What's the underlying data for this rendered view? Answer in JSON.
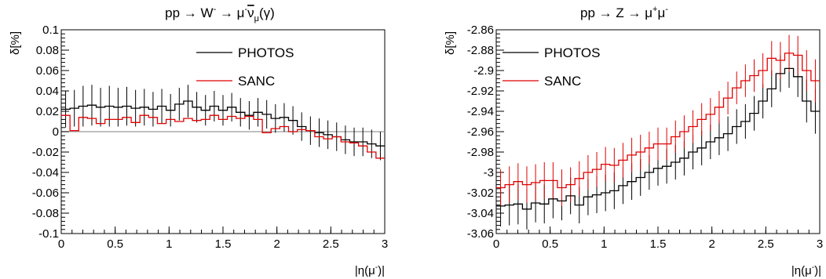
{
  "chart_data": [
    {
      "type": "step",
      "title": "pp → W⁻ → μ⁻ν̄μ(γ)",
      "title_parts": {
        "main": "pp → W",
        "sup1": "-",
        "mid": " → μ",
        "sup2": "-",
        "nu": "ν",
        "sub": "μ",
        "end": "(γ)"
      },
      "ylabel": "δ[%]",
      "xlabel": "|η(μ⁻)|",
      "xlabel_parts": {
        "main": "|η(μ",
        "sup": "-",
        "end": ")|"
      },
      "xlim": [
        0,
        3
      ],
      "ylim": [
        -0.1,
        0.1
      ],
      "xticks": [
        "0",
        "0.5",
        "1",
        "1.5",
        "2",
        "2.5",
        "3"
      ],
      "yticks": [
        "-0.1",
        "-0.08",
        "-0.06",
        "-0.04",
        "-0.02",
        "0",
        "0.02",
        "0.04",
        "0.06",
        "0.08",
        "0.1"
      ],
      "reference_line": 0,
      "series": [
        {
          "name": "PHOTOS",
          "color": "#000000",
          "values": [
            0.022,
            0.023,
            0.025,
            0.026,
            0.024,
            0.025,
            0.024,
            0.025,
            0.023,
            0.024,
            0.022,
            0.025,
            0.021,
            0.027,
            0.03,
            0.024,
            0.021,
            0.025,
            0.021,
            0.024,
            0.019,
            0.016,
            0.019,
            0.017,
            0.013,
            0.014,
            0.011,
            0.005,
            0.001,
            -0.001,
            -0.003,
            -0.005,
            -0.008,
            -0.01,
            -0.01,
            -0.012,
            -0.014
          ],
          "errors": [
            0.018,
            0.018,
            0.02,
            0.02,
            0.019,
            0.02,
            0.019,
            0.019,
            0.018,
            0.018,
            0.017,
            0.017,
            0.016,
            0.016,
            0.016,
            0.015,
            0.015,
            0.015,
            0.015,
            0.014,
            0.014,
            0.014,
            0.014,
            0.014,
            0.014,
            0.014,
            0.014,
            0.014,
            0.014,
            0.014,
            0.014,
            0.014,
            0.014,
            0.014,
            0.014,
            0.014,
            0.014
          ]
        },
        {
          "name": "SANC",
          "color": "#e00000",
          "values": [
            0.016,
            0.001,
            0.014,
            0.013,
            0.008,
            0.012,
            0.012,
            0.014,
            0.009,
            0.016,
            0.014,
            0.008,
            0.012,
            0.01,
            0.013,
            0.011,
            0.012,
            0.016,
            0.012,
            0.015,
            0.013,
            0.015,
            0.012,
            -0.001,
            0.003,
            0.005,
            0.0,
            0.002,
            0.001,
            -0.005,
            -0.007,
            -0.005,
            -0.01,
            -0.011,
            -0.014,
            -0.02,
            -0.026
          ]
        }
      ]
    },
    {
      "type": "step",
      "title": "pp → Z → μ⁺μ⁻",
      "title_parts": {
        "main": "pp → Z → μ",
        "sup1": "+",
        "mid": "μ",
        "sup2": "-"
      },
      "ylabel": "δ[%]",
      "xlabel": "|η(μ⁻)|",
      "xlabel_parts": {
        "main": "|η(μ",
        "sup": "-",
        "end": ")|"
      },
      "xlim": [
        0,
        3
      ],
      "ylim": [
        -3.06,
        -2.86
      ],
      "xticks": [
        "0",
        "0.5",
        "1",
        "1.5",
        "2",
        "2.5",
        "3"
      ],
      "yticks": [
        "-3.06",
        "-3.04",
        "-3.02",
        "-3",
        "-2.98",
        "-2.96",
        "-2.94",
        "-2.92",
        "-2.9",
        "-2.88",
        "-2.86"
      ],
      "series": [
        {
          "name": "PHOTOS",
          "color": "#000000",
          "values": [
            -3.033,
            -3.032,
            -3.031,
            -3.036,
            -3.03,
            -3.031,
            -3.026,
            -3.028,
            -3.023,
            -3.032,
            -3.024,
            -3.022,
            -3.02,
            -3.018,
            -3.013,
            -3.009,
            -3.005,
            -3.0,
            -2.996,
            -2.994,
            -2.99,
            -2.986,
            -2.98,
            -2.976,
            -2.97,
            -2.966,
            -2.962,
            -2.955,
            -2.95,
            -2.942,
            -2.93,
            -2.918,
            -2.903,
            -2.898,
            -2.906,
            -2.93,
            -2.94
          ],
          "errors": [
            0.02,
            0.02,
            0.02,
            0.02,
            0.019,
            0.019,
            0.019,
            0.019,
            0.018,
            0.018,
            0.018,
            0.018,
            0.018,
            0.018,
            0.018,
            0.018,
            0.018,
            0.017,
            0.017,
            0.017,
            0.017,
            0.017,
            0.017,
            0.017,
            0.017,
            0.017,
            0.017,
            0.017,
            0.017,
            0.017,
            0.017,
            0.018,
            0.018,
            0.019,
            0.02,
            0.021,
            0.022
          ]
        },
        {
          "name": "SANC",
          "color": "#e00000",
          "values": [
            -3.015,
            -3.012,
            -3.009,
            -3.012,
            -3.01,
            -3.008,
            -3.008,
            -3.015,
            -3.012,
            -3.006,
            -3.0,
            -2.997,
            -2.992,
            -2.993,
            -2.988,
            -2.983,
            -2.98,
            -2.976,
            -2.972,
            -2.972,
            -2.965,
            -2.96,
            -2.955,
            -2.948,
            -2.943,
            -2.936,
            -2.927,
            -2.917,
            -2.91,
            -2.905,
            -2.9,
            -2.888,
            -2.89,
            -2.883,
            -2.885,
            -2.9,
            -2.91
          ],
          "errors": [
            0.018,
            0.018,
            0.018,
            0.018,
            0.018,
            0.018,
            0.018,
            0.018,
            0.017,
            0.017,
            0.017,
            0.017,
            0.017,
            0.017,
            0.017,
            0.017,
            0.017,
            0.016,
            0.016,
            0.016,
            0.016,
            0.016,
            0.016,
            0.016,
            0.016,
            0.016,
            0.016,
            0.016,
            0.016,
            0.016,
            0.017,
            0.017,
            0.018,
            0.018,
            0.019,
            0.02,
            0.021
          ]
        }
      ]
    }
  ]
}
